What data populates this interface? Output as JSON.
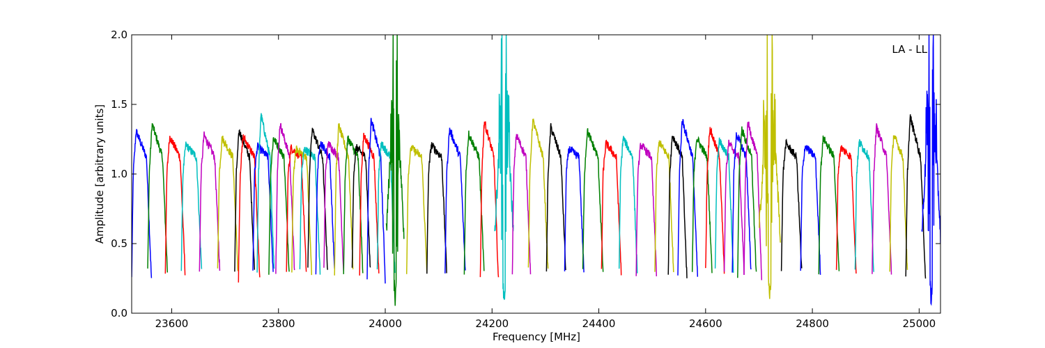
{
  "chart_data": {
    "type": "line",
    "annotation": "LA - LL",
    "xlabel": "Frequency [MHz]",
    "ylabel": "Amplitude [arbitrary units]",
    "xlim": [
      23525,
      25040
    ],
    "ylim": [
      0.0,
      2.0
    ],
    "grid": false,
    "legend": "none",
    "x_ticks": [
      {
        "value": 23600,
        "label": "23600"
      },
      {
        "value": 23800,
        "label": "23800"
      },
      {
        "value": 24000,
        "label": "24000"
      },
      {
        "value": 24200,
        "label": "24200"
      },
      {
        "value": 24400,
        "label": "24400"
      },
      {
        "value": 24600,
        "label": "24600"
      },
      {
        "value": 24800,
        "label": "24800"
      },
      {
        "value": 25000,
        "label": "25000"
      }
    ],
    "y_ticks": [
      {
        "value": 0.0,
        "label": "0.0"
      },
      {
        "value": 0.5,
        "label": "0.5"
      },
      {
        "value": 1.0,
        "label": "1.0"
      },
      {
        "value": 1.5,
        "label": "1.5"
      },
      {
        "value": 2.0,
        "label": "2.0"
      }
    ],
    "color_cycle": [
      "#0000ff",
      "#008000",
      "#ff0000",
      "#00bfbf",
      "#bf00bf",
      "#bfbf00",
      "#000000"
    ],
    "series": [
      {
        "color": "#0000ff",
        "start": 23525,
        "end": 23562,
        "peak": 1.31,
        "low": 0.25
      },
      {
        "color": "#008000",
        "start": 23555,
        "end": 23592,
        "peak": 1.36,
        "low": 0.3
      },
      {
        "color": "#ff0000",
        "start": 23588,
        "end": 23625,
        "peak": 1.27,
        "low": 0.3
      },
      {
        "color": "#00bfbf",
        "start": 23618,
        "end": 23656,
        "peak": 1.21,
        "low": 0.31
      },
      {
        "color": "#bf00bf",
        "start": 23652,
        "end": 23690,
        "peak": 1.28,
        "low": 0.31
      },
      {
        "color": "#bfbf00",
        "start": 23686,
        "end": 23724,
        "peak": 1.26,
        "low": 0.3
      },
      {
        "color": "#000000",
        "start": 23718,
        "end": 23755,
        "peak": 1.31,
        "low": 0.31
      },
      {
        "color": "#ff0000",
        "start": 23725,
        "end": 23765,
        "peak": 1.27,
        "low": 0.25
      },
      {
        "color": "#0000ff",
        "start": 23752,
        "end": 23790,
        "peak": 1.2,
        "low": 0.3
      },
      {
        "color": "#00bfbf",
        "start": 23760,
        "end": 23792,
        "peak": 1.43,
        "low": 0.3
      },
      {
        "color": "#008000",
        "start": 23782,
        "end": 23820,
        "peak": 1.26,
        "low": 0.3
      },
      {
        "color": "#bf00bf",
        "start": 23795,
        "end": 23830,
        "peak": 1.36,
        "low": 0.3
      },
      {
        "color": "#ff0000",
        "start": 23815,
        "end": 23852,
        "peak": 1.19,
        "low": 0.3
      },
      {
        "color": "#bfbf00",
        "start": 23825,
        "end": 23862,
        "peak": 1.18,
        "low": 0.3
      },
      {
        "color": "#00bfbf",
        "start": 23840,
        "end": 23878,
        "peak": 1.18,
        "low": 0.29
      },
      {
        "color": "#000000",
        "start": 23855,
        "end": 23892,
        "peak": 1.32,
        "low": 0.31
      },
      {
        "color": "#0000ff",
        "start": 23870,
        "end": 23905,
        "peak": 1.23,
        "low": 0.3
      },
      {
        "color": "#bf00bf",
        "start": 23885,
        "end": 23922,
        "peak": 1.22,
        "low": 0.3
      },
      {
        "color": "#bfbf00",
        "start": 23905,
        "end": 23940,
        "peak": 1.35,
        "low": 0.29
      },
      {
        "color": "#008000",
        "start": 23922,
        "end": 23958,
        "peak": 1.26,
        "low": 0.3
      },
      {
        "color": "#000000",
        "start": 23938,
        "end": 23972,
        "peak": 1.19,
        "low": 0.3
      },
      {
        "color": "#ff0000",
        "start": 23952,
        "end": 23988,
        "peak": 1.28,
        "low": 0.3
      },
      {
        "color": "#0000ff",
        "start": 23966,
        "end": 24000,
        "peak": 1.39,
        "low": 0.24
      },
      {
        "color": "#00bfbf",
        "start": 23985,
        "end": 24018,
        "peak": 1.22,
        "low": 0.3
      },
      {
        "color": "#008000",
        "start": 24002,
        "end": 24035,
        "peak": 2.0,
        "low": 0.04
      },
      {
        "color": "#bfbf00",
        "start": 24040,
        "end": 24078,
        "peak": 1.19,
        "low": 0.29
      },
      {
        "color": "#000000",
        "start": 24078,
        "end": 24115,
        "peak": 1.21,
        "low": 0.3
      },
      {
        "color": "#0000ff",
        "start": 24112,
        "end": 24150,
        "peak": 1.32,
        "low": 0.3
      },
      {
        "color": "#008000",
        "start": 24148,
        "end": 24185,
        "peak": 1.29,
        "low": 0.3
      },
      {
        "color": "#ff0000",
        "start": 24178,
        "end": 24212,
        "peak": 1.38,
        "low": 0.23
      },
      {
        "color": "#00bfbf",
        "start": 24205,
        "end": 24240,
        "peak": 2.0,
        "low": 0.03
      },
      {
        "color": "#bf00bf",
        "start": 24238,
        "end": 24272,
        "peak": 1.28,
        "low": 0.3
      },
      {
        "color": "#bfbf00",
        "start": 24268,
        "end": 24305,
        "peak": 1.39,
        "low": 0.3
      },
      {
        "color": "#000000",
        "start": 24302,
        "end": 24338,
        "peak": 1.34,
        "low": 0.31
      },
      {
        "color": "#0000ff",
        "start": 24336,
        "end": 24372,
        "peak": 1.18,
        "low": 0.3
      },
      {
        "color": "#008000",
        "start": 24370,
        "end": 24408,
        "peak": 1.31,
        "low": 0.3
      },
      {
        "color": "#ff0000",
        "start": 24405,
        "end": 24442,
        "peak": 1.22,
        "low": 0.29
      },
      {
        "color": "#00bfbf",
        "start": 24438,
        "end": 24472,
        "peak": 1.26,
        "low": 0.3
      },
      {
        "color": "#bf00bf",
        "start": 24470,
        "end": 24508,
        "peak": 1.21,
        "low": 0.29
      },
      {
        "color": "#bfbf00",
        "start": 24505,
        "end": 24540,
        "peak": 1.23,
        "low": 0.3
      },
      {
        "color": "#000000",
        "start": 24530,
        "end": 24565,
        "peak": 1.28,
        "low": 0.25
      },
      {
        "color": "#0000ff",
        "start": 24548,
        "end": 24585,
        "peak": 1.39,
        "low": 0.26
      },
      {
        "color": "#008000",
        "start": 24575,
        "end": 24612,
        "peak": 1.26,
        "low": 0.3
      },
      {
        "color": "#ff0000",
        "start": 24600,
        "end": 24635,
        "peak": 1.33,
        "low": 0.3
      },
      {
        "color": "#00bfbf",
        "start": 24618,
        "end": 24652,
        "peak": 1.24,
        "low": 0.3
      },
      {
        "color": "#bf00bf",
        "start": 24635,
        "end": 24672,
        "peak": 1.22,
        "low": 0.3
      },
      {
        "color": "#0000ff",
        "start": 24650,
        "end": 24685,
        "peak": 1.29,
        "low": 0.3
      },
      {
        "color": "#008000",
        "start": 24660,
        "end": 24695,
        "peak": 1.32,
        "low": 0.27
      },
      {
        "color": "#bf00bf",
        "start": 24672,
        "end": 24705,
        "peak": 1.37,
        "low": 0.25
      },
      {
        "color": "#bfbf00",
        "start": 24700,
        "end": 24740,
        "peak": 2.0,
        "low": 0.04
      },
      {
        "color": "#000000",
        "start": 24742,
        "end": 24780,
        "peak": 1.22,
        "low": 0.3
      },
      {
        "color": "#0000ff",
        "start": 24778,
        "end": 24815,
        "peak": 1.2,
        "low": 0.3
      },
      {
        "color": "#008000",
        "start": 24812,
        "end": 24850,
        "peak": 1.26,
        "low": 0.29
      },
      {
        "color": "#ff0000",
        "start": 24845,
        "end": 24882,
        "peak": 1.19,
        "low": 0.29
      },
      {
        "color": "#00bfbf",
        "start": 24880,
        "end": 24915,
        "peak": 1.23,
        "low": 0.29
      },
      {
        "color": "#bf00bf",
        "start": 24912,
        "end": 24948,
        "peak": 1.34,
        "low": 0.29
      },
      {
        "color": "#bfbf00",
        "start": 24945,
        "end": 24978,
        "peak": 1.28,
        "low": 0.29
      },
      {
        "color": "#000000",
        "start": 24975,
        "end": 25012,
        "peak": 1.41,
        "low": 0.24
      },
      {
        "color": "#0000ff",
        "start": 25005,
        "end": 25040,
        "peak": 2.0,
        "low": 0.04
      }
    ]
  }
}
